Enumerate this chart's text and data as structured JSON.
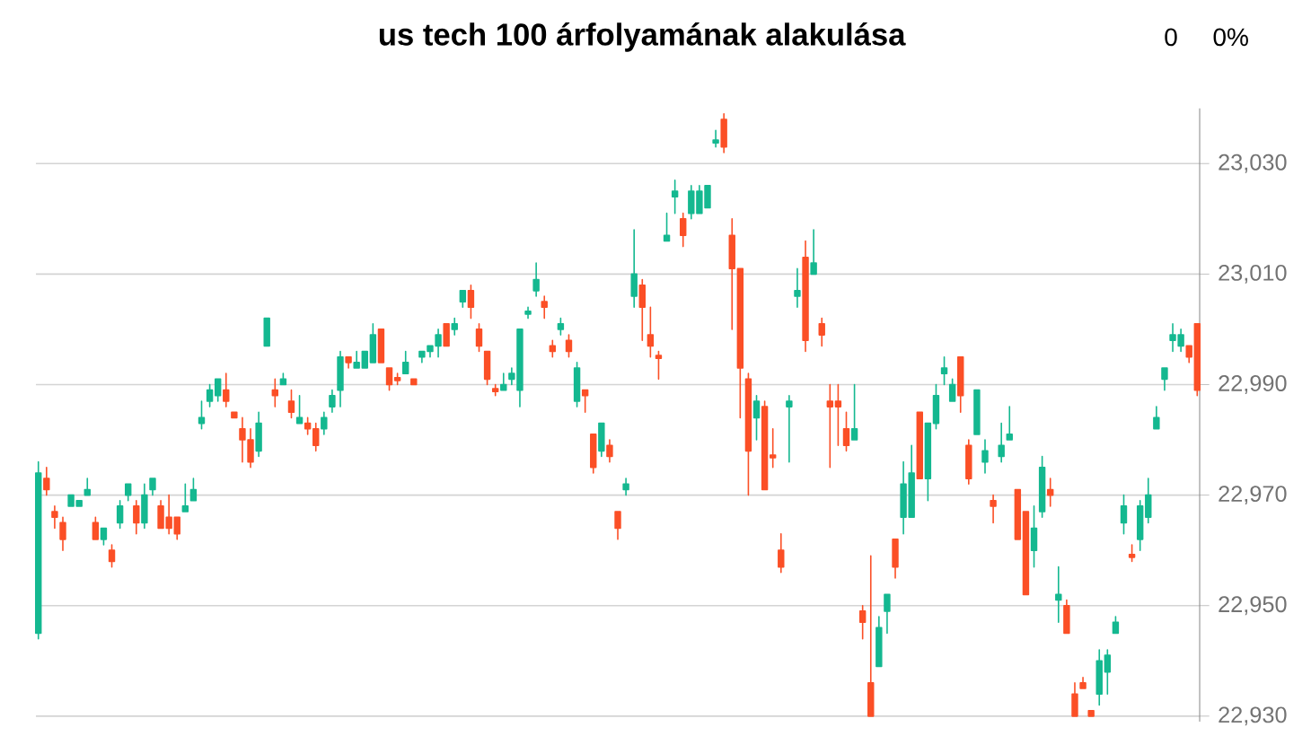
{
  "chart_data": {
    "type": "candlestick",
    "title": "us tech 100 árfolyamának alakulása",
    "annotations": [
      "0",
      "0%"
    ],
    "categories": [
      null,
      null,
      null,
      null,
      null,
      null,
      null,
      null,
      null,
      null,
      null,
      null,
      null,
      null,
      null,
      null,
      null,
      null,
      null,
      null,
      null,
      null,
      null,
      null,
      null,
      null,
      null,
      null,
      null,
      null,
      null,
      null,
      null,
      null,
      null,
      null,
      null,
      null,
      null,
      null,
      null,
      null,
      null,
      null,
      null,
      null,
      null,
      null,
      null,
      null,
      null,
      null,
      null,
      null,
      null,
      null,
      null,
      null,
      null,
      null,
      null,
      null,
      null,
      null,
      null,
      null,
      null,
      null,
      null,
      null,
      null,
      null,
      null,
      null,
      null,
      null,
      null,
      null,
      null,
      null,
      null,
      null,
      null,
      null,
      null,
      null,
      null,
      null,
      null,
      null,
      null,
      null,
      null,
      null,
      null,
      null,
      null,
      null,
      null,
      null,
      null,
      null,
      null,
      null,
      null,
      null,
      null,
      null,
      null,
      null,
      null,
      null,
      null,
      null,
      null,
      null,
      null,
      null,
      null,
      null,
      null,
      null,
      null,
      null,
      null,
      null,
      null,
      null,
      null,
      null,
      null,
      null,
      null,
      null,
      null,
      null,
      null,
      null,
      null,
      null,
      null,
      null,
      null
    ],
    "ohlc": [
      [
        22945,
        22976,
        22944,
        22974
      ],
      [
        22973,
        22975,
        22970,
        22971
      ],
      [
        22967,
        22968,
        22964,
        22966
      ],
      [
        22965,
        22966,
        22960,
        22962
      ],
      [
        22968,
        22970,
        22968,
        22970
      ],
      [
        22968,
        22969,
        22968,
        22969
      ],
      [
        22970,
        22973,
        22970,
        22971
      ],
      [
        22965,
        22966,
        22962,
        22962
      ],
      [
        22962,
        22964,
        22961,
        22964
      ],
      [
        22960,
        22961,
        22957,
        22958
      ],
      [
        22965,
        22969,
        22964,
        22968
      ],
      [
        22970,
        22972,
        22969,
        22972
      ],
      [
        22968,
        22969,
        22963,
        22965
      ],
      [
        22965,
        22972,
        22964,
        22970
      ],
      [
        22971,
        22973,
        22970,
        22973
      ],
      [
        22968,
        22969,
        22964,
        22964
      ],
      [
        22966,
        22970,
        22963,
        22964
      ],
      [
        22966,
        22966,
        22962,
        22963
      ],
      [
        22967,
        22972,
        22967,
        22968
      ],
      [
        22969,
        22973,
        22969,
        22971
      ],
      [
        22983,
        22987,
        22982,
        22984
      ],
      [
        22987,
        22990,
        22986,
        22989
      ],
      [
        22988,
        22991,
        22987,
        22991
      ],
      [
        22989,
        22992,
        22986,
        22987
      ],
      [
        22985,
        22985,
        22984,
        22984
      ],
      [
        22982,
        22984,
        22976,
        22980
      ],
      [
        22980,
        22982,
        22975,
        22976
      ],
      [
        22978,
        22985,
        22977,
        22983
      ],
      [
        22997,
        23002,
        22997,
        23002
      ],
      [
        22989,
        22991,
        22986,
        22988
      ],
      [
        22990,
        22992,
        22990,
        22991
      ],
      [
        22987,
        22989,
        22984,
        22985
      ],
      [
        22983,
        22988,
        22983,
        22984
      ],
      [
        22983,
        22984,
        22981,
        22982
      ],
      [
        22982,
        22983,
        22978,
        22979
      ],
      [
        22982,
        22985,
        22981,
        22984
      ],
      [
        22986,
        22989,
        22985,
        22988
      ],
      [
        22989,
        22996,
        22986,
        22995
      ],
      [
        22995,
        22995,
        22993,
        22994
      ],
      [
        22993,
        22996,
        22993,
        22994
      ],
      [
        22993,
        22996,
        22993,
        22996
      ],
      [
        22994,
        23001,
        22994,
        22999
      ],
      [
        23000,
        23000,
        22994,
        22994
      ],
      [
        22993,
        22993,
        22989,
        22990
      ],
      [
        22991,
        22992,
        22990,
        22991
      ],
      [
        22992,
        22996,
        22992,
        22994
      ],
      [
        22991,
        22991,
        22990,
        22990
      ],
      [
        22995,
        22996,
        22994,
        22996
      ],
      [
        22996,
        22997,
        22995,
        22997
      ],
      [
        22997,
        23000,
        22995,
        22999
      ],
      [
        23001,
        23001,
        22997,
        22997
      ],
      [
        23000,
        23002,
        22999,
        23001
      ],
      [
        23005,
        23007,
        23004,
        23007
      ],
      [
        23007,
        23008,
        23002,
        23004
      ],
      [
        23000,
        23001,
        22996,
        22997
      ],
      [
        22996,
        22996,
        22990,
        22991
      ],
      [
        22989,
        22990,
        22988,
        22989
      ],
      [
        22989,
        22992,
        22989,
        22990
      ],
      [
        22991,
        22993,
        22990,
        22992
      ],
      [
        22989,
        23000,
        22986,
        23000
      ],
      [
        23003,
        23004,
        23002,
        23003
      ],
      [
        23007,
        23012,
        23006,
        23009
      ],
      [
        23005,
        23006,
        23002,
        23004
      ],
      [
        22997,
        22998,
        22995,
        22996
      ],
      [
        23000,
        23002,
        22999,
        23001
      ],
      [
        22998,
        22999,
        22995,
        22996
      ],
      [
        22987,
        22994,
        22986,
        22993
      ],
      [
        22989,
        22989,
        22985,
        22988
      ],
      [
        22981,
        22981,
        22974,
        22975
      ],
      [
        22978,
        22983,
        22977,
        22983
      ],
      [
        22979,
        22980,
        22976,
        22977
      ],
      [
        22967,
        22967,
        22962,
        22964
      ],
      [
        22971,
        22973,
        22970,
        22972
      ],
      [
        23006,
        23018,
        23004,
        23010
      ],
      [
        23008,
        23009,
        22998,
        23004
      ],
      [
        22999,
        23004,
        22995,
        22997
      ],
      [
        22995,
        22996,
        22991,
        22995
      ],
      [
        23016,
        23021,
        23016,
        23017
      ],
      [
        23024,
        23027,
        23021,
        23025
      ],
      [
        23020,
        23021,
        23015,
        23017
      ],
      [
        23021,
        23026,
        23020,
        23025
      ],
      [
        23021,
        23026,
        23021,
        23025
      ],
      [
        23022,
        23026,
        23022,
        23026
      ],
      [
        23034,
        23036,
        23033,
        23034
      ],
      [
        23038,
        23039,
        23032,
        23033
      ],
      [
        23017,
        23020,
        23000,
        23011
      ],
      [
        23011,
        23011,
        22984,
        22993
      ],
      [
        22991,
        22992,
        22970,
        22978
      ],
      [
        22984,
        22988,
        22980,
        22987
      ],
      [
        22986,
        22987,
        22971,
        22971
      ],
      [
        22977,
        22982,
        22975,
        22977
      ],
      [
        22960,
        22963,
        22956,
        22957
      ],
      [
        22986,
        22988,
        22976,
        22987
      ],
      [
        23006,
        23011,
        23004,
        23007
      ],
      [
        23013,
        23016,
        22996,
        22998
      ],
      [
        23010,
        23018,
        23010,
        23012
      ],
      [
        23001,
        23002,
        22997,
        22999
      ],
      [
        22987,
        22990,
        22975,
        22986
      ],
      [
        22987,
        22990,
        22979,
        22986
      ],
      [
        22982,
        22985,
        22978,
        22979
      ],
      [
        22980,
        22990,
        22980,
        22982
      ],
      [
        22949,
        22950,
        22944,
        22947
      ],
      [
        22936,
        22959,
        22930,
        22930
      ],
      [
        22939,
        22948,
        22939,
        22946
      ],
      [
        22949,
        22952,
        22945,
        22952
      ],
      [
        22962,
        22962,
        22955,
        22957
      ],
      [
        22966,
        22976,
        22963,
        22972
      ],
      [
        22966,
        22979,
        22966,
        22974
      ],
      [
        22985,
        22985,
        22973,
        22973
      ],
      [
        22973,
        22983,
        22969,
        22983
      ],
      [
        22983,
        22990,
        22982,
        22988
      ],
      [
        22992,
        22995,
        22990,
        22993
      ],
      [
        22987,
        22991,
        22987,
        22990
      ],
      [
        22995,
        22995,
        22985,
        22988
      ],
      [
        22979,
        22980,
        22972,
        22973
      ],
      [
        22981,
        22989,
        22981,
        22989
      ],
      [
        22976,
        22980,
        22974,
        22978
      ],
      [
        22969,
        22970,
        22965,
        22968
      ],
      [
        22977,
        22983,
        22976,
        22979
      ],
      [
        22980,
        22986,
        22980,
        22981
      ],
      [
        22971,
        22971,
        22962,
        22962
      ],
      [
        22967,
        22967,
        22952,
        22952
      ],
      [
        22960,
        22968,
        22957,
        22964
      ],
      [
        22967,
        22977,
        22966,
        22975
      ],
      [
        22971,
        22973,
        22968,
        22970
      ],
      [
        22951,
        22957,
        22947,
        22952
      ],
      [
        22950,
        22951,
        22945,
        22945
      ],
      [
        22934,
        22936,
        22930,
        22930
      ],
      [
        22936,
        22937,
        22935,
        22935
      ],
      [
        22931,
        22931,
        22930,
        22930
      ],
      [
        22934,
        22942,
        22932,
        22940
      ],
      [
        22938,
        22942,
        22934,
        22941
      ],
      [
        22945,
        22948,
        22945,
        22947
      ],
      [
        22965,
        22970,
        22963,
        22968
      ],
      [
        22959,
        22961,
        22958,
        22959
      ],
      [
        22962,
        22969,
        22960,
        22968
      ],
      [
        22966,
        22973,
        22965,
        22970
      ],
      [
        22982,
        22986,
        22982,
        22984
      ],
      [
        22991,
        22993,
        22989,
        22993
      ],
      [
        22998,
        23001,
        22996,
        22999
      ],
      [
        22997,
        23000,
        22996,
        22999
      ],
      [
        22997,
        22997,
        22994,
        22995
      ],
      [
        23001,
        23001,
        22988,
        22989
      ]
    ],
    "colors": [
      "#14b890",
      "#fb4f26",
      "#fb4f26",
      "#fb4f26",
      "#14b890",
      "#14b890",
      "#14b890",
      "#fb4f26",
      "#14b890",
      "#fb4f26",
      "#14b890",
      "#14b890",
      "#fb4f26",
      "#14b890",
      "#14b890",
      "#fb4f26",
      "#fb4f26",
      "#fb4f26",
      "#14b890",
      "#14b890",
      "#14b890",
      "#14b890",
      "#14b890",
      "#fb4f26",
      "#fb4f26",
      "#fb4f26",
      "#fb4f26",
      "#14b890",
      "#14b890",
      "#fb4f26",
      "#14b890",
      "#fb4f26",
      "#14b890",
      "#fb4f26",
      "#fb4f26",
      "#14b890",
      "#14b890",
      "#14b890",
      "#fb4f26",
      "#14b890",
      "#14b890",
      "#14b890",
      "#fb4f26",
      "#fb4f26",
      "#fb4f26",
      "#14b890",
      "#fb4f26",
      "#14b890",
      "#14b890",
      "#14b890",
      "#fb4f26",
      "#14b890",
      "#14b890",
      "#fb4f26",
      "#fb4f26",
      "#fb4f26",
      "#fb4f26",
      "#14b890",
      "#14b890",
      "#14b890",
      "#14b890",
      "#14b890",
      "#fb4f26",
      "#fb4f26",
      "#14b890",
      "#fb4f26",
      "#14b890",
      "#fb4f26",
      "#fb4f26",
      "#14b890",
      "#fb4f26",
      "#fb4f26",
      "#14b890",
      "#14b890",
      "#fb4f26",
      "#fb4f26",
      "#fb4f26",
      "#14b890",
      "#14b890",
      "#fb4f26",
      "#14b890",
      "#14b890",
      "#14b890",
      "#14b890",
      "#fb4f26",
      "#fb4f26",
      "#fb4f26",
      "#fb4f26",
      "#14b890",
      "#fb4f26",
      "#fb4f26",
      "#fb4f26",
      "#14b890",
      "#14b890",
      "#fb4f26",
      "#14b890",
      "#fb4f26",
      "#fb4f26",
      "#fb4f26",
      "#fb4f26",
      "#14b890",
      "#fb4f26",
      "#fb4f26",
      "#14b890",
      "#14b890",
      "#fb4f26",
      "#14b890",
      "#14b890",
      "#fb4f26",
      "#14b890",
      "#14b890",
      "#14b890",
      "#14b890",
      "#fb4f26",
      "#fb4f26",
      "#14b890",
      "#14b890",
      "#fb4f26",
      "#14b890",
      "#14b890",
      "#fb4f26",
      "#fb4f26",
      "#14b890",
      "#14b890",
      "#fb4f26",
      "#14b890",
      "#fb4f26",
      "#fb4f26",
      "#fb4f26",
      "#fb4f26",
      "#14b890",
      "#14b890",
      "#14b890",
      "#14b890",
      "#fb4f26",
      "#14b890",
      "#14b890",
      "#14b890",
      "#14b890",
      "#14b890",
      "#14b890",
      "#fb4f26",
      "#fb4f26"
    ],
    "ylim": [
      22929,
      23040
    ],
    "yticks": [
      {
        "value": 22930,
        "label": "22,930"
      },
      {
        "value": 22950,
        "label": "22,950"
      },
      {
        "value": 22970,
        "label": "22,970"
      },
      {
        "value": 22990,
        "label": "22,990"
      },
      {
        "value": 23010,
        "label": "23,010"
      },
      {
        "value": 23030,
        "label": "23,030"
      }
    ],
    "grid": "y",
    "tick_labels": "y"
  }
}
